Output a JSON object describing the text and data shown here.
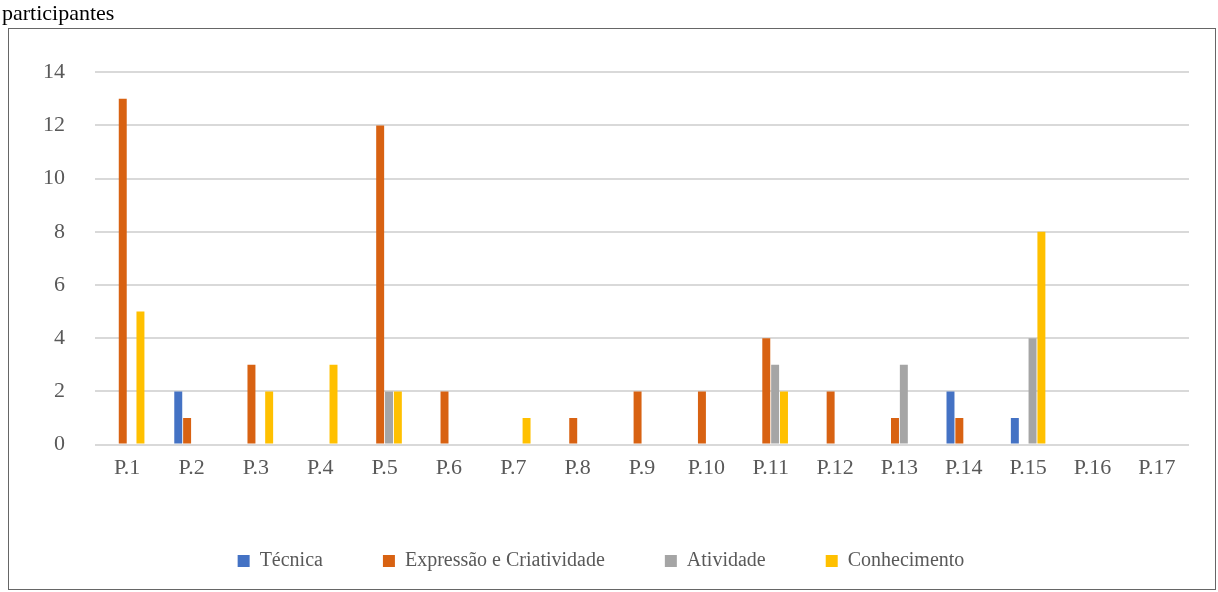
{
  "chart_data": {
    "type": "bar",
    "title": "participantes",
    "categories": [
      "P.1",
      "P.2",
      "P.3",
      "P.4",
      "P.5",
      "P.6",
      "P.7",
      "P.8",
      "P.9",
      "P.10",
      "P.11",
      "P.12",
      "P.13",
      "P.14",
      "P.15",
      "P.16",
      "P.17"
    ],
    "series": [
      {
        "name": "Técnica",
        "color": "#4472c4",
        "values": [
          0,
          2,
          0,
          0,
          0,
          0,
          0,
          0,
          0,
          0,
          0,
          0,
          0,
          2,
          1,
          0,
          0
        ]
      },
      {
        "name": "Expressão e Criatividade",
        "color": "#d86212",
        "values": [
          13,
          1,
          3,
          0,
          12,
          2,
          0,
          1,
          2,
          2,
          4,
          2,
          1,
          1,
          0,
          0,
          0
        ]
      },
      {
        "name": "Atividade",
        "color": "#a5a5a5",
        "values": [
          0,
          0,
          0,
          0,
          2,
          0,
          0,
          0,
          0,
          0,
          3,
          0,
          3,
          0,
          4,
          0,
          0
        ]
      },
      {
        "name": "Conhecimento",
        "color": "#ffc000",
        "values": [
          5,
          0,
          2,
          3,
          2,
          0,
          1,
          0,
          0,
          0,
          2,
          0,
          0,
          0,
          8,
          0,
          0
        ]
      }
    ],
    "ylim": [
      0,
      14
    ],
    "yticks": [
      0,
      2,
      4,
      6,
      8,
      10,
      12,
      14
    ],
    "grid": "y",
    "legend": "bottom"
  }
}
